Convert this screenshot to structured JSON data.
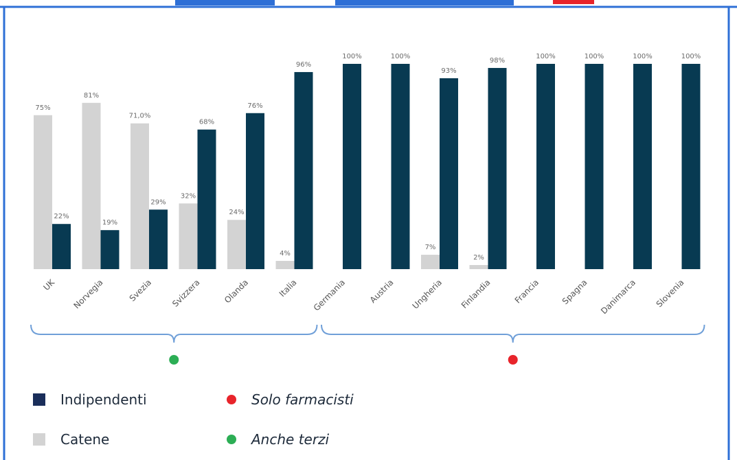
{
  "colors": {
    "independent": "#083a52",
    "chains": "#d3d3d3",
    "frame": "#2e6fd6",
    "bracket": "#6f9fd8",
    "red_dot": "#e8242b",
    "green_dot": "#2cae55",
    "legend_dark": "#1a2e5a"
  },
  "chart_data": {
    "type": "bar",
    "categories": [
      "UK",
      "Norvegia",
      "Svezia",
      "Svizzera",
      "Olanda",
      "Italia",
      "Germania",
      "Austria",
      "Ungheria",
      "Finlandia",
      "Francia",
      "Spagna",
      "Danimarca",
      "Slovenia"
    ],
    "series": [
      {
        "name": "Catene",
        "color_key": "chains",
        "values": [
          75,
          81,
          71.0,
          32,
          24,
          4,
          null,
          null,
          7,
          2,
          null,
          null,
          null,
          null
        ],
        "labels": [
          "75%",
          "81%",
          "71,0%",
          "32%",
          "24%",
          "4%",
          "",
          "",
          "7%",
          "2%",
          "",
          "",
          "",
          ""
        ]
      },
      {
        "name": "Indipendenti",
        "color_key": "independent",
        "values": [
          22,
          19,
          29,
          68,
          76,
          96,
          100,
          100,
          93,
          98,
          100,
          100,
          100,
          100
        ],
        "labels": [
          "22%",
          "19%",
          "29%",
          "68%",
          "76%",
          "96%",
          "100%",
          "100%",
          "93%",
          "98%",
          "100%",
          "100%",
          "100%",
          "100%"
        ]
      }
    ],
    "ylim": [
      0,
      100
    ],
    "grid": false,
    "groups": [
      {
        "from": 0,
        "to": 5,
        "marker": "green_dot"
      },
      {
        "from": 6,
        "to": 13,
        "marker": "red_dot"
      }
    ]
  },
  "legend": {
    "independent": "Indipendenti",
    "chains": "Catene",
    "pharmacists_only": "Solo farmacisti",
    "also_others": "Anche terzi"
  }
}
